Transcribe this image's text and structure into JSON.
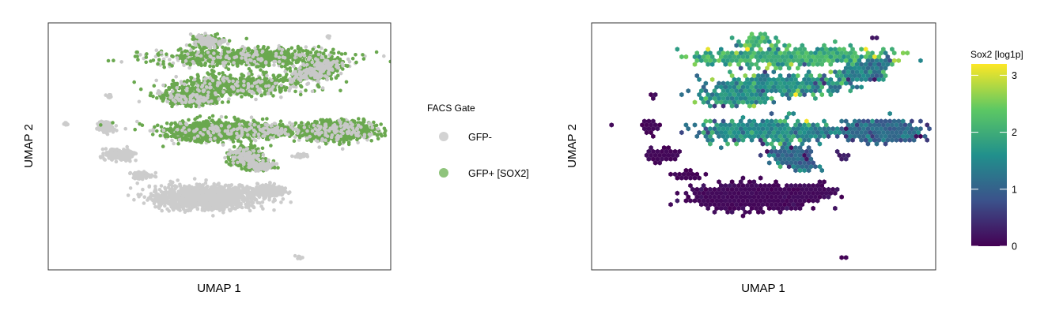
{
  "chart_data": [
    {
      "type": "scatter",
      "xlabel": "UMAP 1",
      "ylabel": "UMAP 2",
      "legend": {
        "title": "FACS Gate",
        "position": "right",
        "entries": [
          {
            "label": "GFP-",
            "color": "#d3d3d3"
          },
          {
            "label": "GFP+ [SOX2]",
            "color": "#6aa84f"
          }
        ]
      },
      "grid": false,
      "series": [
        {
          "name": "GFP-",
          "color": "#cccccc"
        },
        {
          "name": "GFP+ [SOX2]",
          "color": "#6aa84f"
        }
      ]
    },
    {
      "type": "heatmap",
      "xlabel": "UMAP 1",
      "ylabel": "UMAP 2",
      "colorbar": {
        "title": "Sox2 [log1p]",
        "position": "right",
        "range": [
          0,
          3.2
        ],
        "ticks": [
          {
            "value": 0,
            "label": "0"
          },
          {
            "value": 1,
            "label": "1"
          },
          {
            "value": 2,
            "label": "2"
          },
          {
            "value": 3,
            "label": "3"
          }
        ],
        "colormap": "viridis",
        "colors": [
          "#440154",
          "#3b528b",
          "#21908c",
          "#5dc863",
          "#fde725"
        ]
      },
      "grid": false
    }
  ]
}
